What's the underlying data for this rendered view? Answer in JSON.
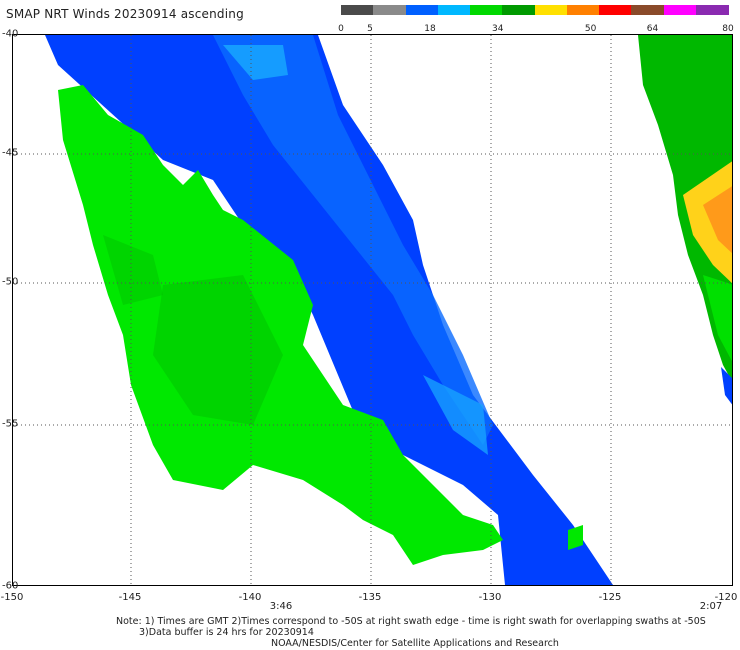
{
  "title": "SMAP NRT Winds 20230914 ascending",
  "colorbar": {
    "labels": [
      "0",
      "5",
      "18",
      "34",
      "50",
      "64",
      "80"
    ],
    "colors": [
      "#4a4a4a",
      "#8a8a8a",
      "#0060ff",
      "#00b8ff",
      "#00d800",
      "#009a00",
      "#ffe000",
      "#ff8000",
      "#ff0000",
      "#8a4a2a",
      "#ff00ff",
      "#8a2ab0"
    ]
  },
  "map": {
    "x_ticks": [
      "-150",
      "-145",
      "-140",
      "-135",
      "-130",
      "-125",
      "-120"
    ],
    "y_ticks": [
      "-40",
      "-45",
      "-50",
      "-55",
      "-60"
    ],
    "times": {
      "left_swath": "3:46",
      "right_swath": "2:07"
    }
  },
  "notes": {
    "line1": "Note: 1) Times are GMT 2)Times correspond to -50S at right swath edge - time is right swath for overlapping swaths at -50S",
    "line2": "3)Data buffer is 24 hrs for 20230914",
    "line3": "NOAA/NESDIS/Center for Satellite Applications and Research"
  }
}
